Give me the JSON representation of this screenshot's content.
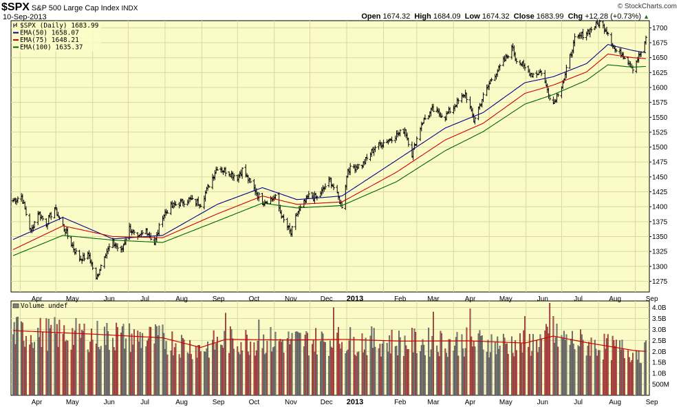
{
  "header": {
    "symbol": "$SPX",
    "description": "S&P 500 Large Cap Index",
    "exchange": "INDX",
    "date": "10-Sep-2013",
    "brand": "© StockCharts.com",
    "open_label": "Open",
    "open": "1674.32",
    "high_label": "High",
    "high": "1684.09",
    "low_label": "Low",
    "low": "1674.32",
    "close_label": "Close",
    "close": "1683.99",
    "chg_label": "Chg",
    "chg": "+12.28 (+0.73%)"
  },
  "legend": {
    "price": "$SPX (Daily) 1683.99",
    "ema50": "EMA(50) 1658.07",
    "ema75": "EMA(75) 1648.21",
    "ema100": "EMA(100) 1635.37",
    "volume": "Volume undef"
  },
  "colors": {
    "panel_bg": "#fbfbc8",
    "ema50": "#00008b",
    "ema75": "#cc0000",
    "ema100": "#006400",
    "vol_up": "#808080",
    "vol_down": "#d04848",
    "vol_avg": "#cc0000"
  },
  "chart_data": [
    {
      "type": "line",
      "panel": "price",
      "y_ticks": [
        1275,
        1300,
        1325,
        1350,
        1375,
        1400,
        1425,
        1450,
        1475,
        1500,
        1525,
        1550,
        1575,
        1600,
        1625,
        1650,
        1675,
        1700
      ],
      "ylim": [
        1257,
        1712
      ],
      "x_months": [
        "Apr",
        "May",
        "Jun",
        "Jul",
        "Aug",
        "Sep",
        "Oct",
        "Nov",
        "Dec",
        "2013",
        "Feb",
        "Mar",
        "Apr",
        "May",
        "Jun",
        "Jul",
        "Aug",
        "Sep"
      ],
      "close_anchors": [
        [
          "2012-03-26",
          1410
        ],
        [
          "2012-04-02",
          1418
        ],
        [
          "2012-04-10",
          1358
        ],
        [
          "2012-04-16",
          1390
        ],
        [
          "2012-04-23",
          1372
        ],
        [
          "2012-04-30",
          1398
        ],
        [
          "2012-05-07",
          1368
        ],
        [
          "2012-05-14",
          1338
        ],
        [
          "2012-05-21",
          1312
        ],
        [
          "2012-05-29",
          1318
        ],
        [
          "2012-06-04",
          1278
        ],
        [
          "2012-06-11",
          1320
        ],
        [
          "2012-06-18",
          1340
        ],
        [
          "2012-06-25",
          1325
        ],
        [
          "2012-07-02",
          1365
        ],
        [
          "2012-07-09",
          1345
        ],
        [
          "2012-07-16",
          1362
        ],
        [
          "2012-07-23",
          1338
        ],
        [
          "2012-07-30",
          1385
        ],
        [
          "2012-08-06",
          1400
        ],
        [
          "2012-08-13",
          1406
        ],
        [
          "2012-08-21",
          1412
        ],
        [
          "2012-08-31",
          1405
        ],
        [
          "2012-09-07",
          1437
        ],
        [
          "2012-09-14",
          1466
        ],
        [
          "2012-09-21",
          1460
        ],
        [
          "2012-10-01",
          1450
        ],
        [
          "2012-10-05",
          1462
        ],
        [
          "2012-10-15",
          1430
        ],
        [
          "2012-10-22",
          1408
        ],
        [
          "2012-11-02",
          1415
        ],
        [
          "2012-11-08",
          1380
        ],
        [
          "2012-11-15",
          1355
        ],
        [
          "2012-11-20",
          1388
        ],
        [
          "2012-11-30",
          1418
        ],
        [
          "2012-12-07",
          1415
        ],
        [
          "2012-12-18",
          1445
        ],
        [
          "2012-12-28",
          1402
        ],
        [
          "2013-01-02",
          1462
        ],
        [
          "2013-01-15",
          1472
        ],
        [
          "2013-01-25",
          1500
        ],
        [
          "2013-02-05",
          1512
        ],
        [
          "2013-02-12",
          1520
        ],
        [
          "2013-02-19",
          1530
        ],
        [
          "2013-02-25",
          1488
        ],
        [
          "2013-03-05",
          1540
        ],
        [
          "2013-03-14",
          1562
        ],
        [
          "2013-03-25",
          1552
        ],
        [
          "2013-04-02",
          1570
        ],
        [
          "2013-04-11",
          1590
        ],
        [
          "2013-04-18",
          1545
        ],
        [
          "2013-04-26",
          1585
        ],
        [
          "2013-05-03",
          1614
        ],
        [
          "2013-05-10",
          1634
        ],
        [
          "2013-05-21",
          1668
        ],
        [
          "2013-05-23",
          1650
        ],
        [
          "2013-05-31",
          1632
        ],
        [
          "2013-06-06",
          1622
        ],
        [
          "2013-06-14",
          1626
        ],
        [
          "2013-06-20",
          1590
        ],
        [
          "2013-06-24",
          1573
        ],
        [
          "2013-07-03",
          1614
        ],
        [
          "2013-07-12",
          1680
        ],
        [
          "2013-07-22",
          1692
        ],
        [
          "2013-08-02",
          1709
        ],
        [
          "2013-08-09",
          1692
        ],
        [
          "2013-08-15",
          1662
        ],
        [
          "2013-08-22",
          1655
        ],
        [
          "2013-08-30",
          1633
        ],
        [
          "2013-09-05",
          1655
        ],
        [
          "2013-09-09",
          1671
        ],
        [
          "2013-09-10",
          1683.99
        ]
      ],
      "ema_anchors": {
        "ema50": [
          [
            "2012-03-26",
            1345
          ],
          [
            "2012-05-07",
            1382
          ],
          [
            "2012-06-18",
            1346
          ],
          [
            "2012-07-30",
            1352
          ],
          [
            "2012-09-14",
            1404
          ],
          [
            "2012-10-22",
            1432
          ],
          [
            "2012-11-20",
            1412
          ],
          [
            "2012-12-28",
            1418
          ],
          [
            "2013-02-12",
            1478
          ],
          [
            "2013-03-25",
            1532
          ],
          [
            "2013-04-26",
            1558
          ],
          [
            "2013-05-31",
            1608
          ],
          [
            "2013-06-24",
            1618
          ],
          [
            "2013-07-22",
            1640
          ],
          [
            "2013-08-09",
            1672
          ],
          [
            "2013-08-30",
            1662
          ],
          [
            "2013-09-10",
            1658.07
          ]
        ],
        "ema75": [
          [
            "2012-03-26",
            1328
          ],
          [
            "2012-05-07",
            1368
          ],
          [
            "2012-06-18",
            1350
          ],
          [
            "2012-07-30",
            1348
          ],
          [
            "2012-09-14",
            1388
          ],
          [
            "2012-10-22",
            1418
          ],
          [
            "2012-11-20",
            1404
          ],
          [
            "2012-12-28",
            1408
          ],
          [
            "2013-02-12",
            1458
          ],
          [
            "2013-03-25",
            1512
          ],
          [
            "2013-04-26",
            1540
          ],
          [
            "2013-05-31",
            1590
          ],
          [
            "2013-06-24",
            1604
          ],
          [
            "2013-07-22",
            1626
          ],
          [
            "2013-08-09",
            1656
          ],
          [
            "2013-08-30",
            1650
          ],
          [
            "2013-09-10",
            1648.21
          ]
        ],
        "ema100": [
          [
            "2012-03-26",
            1318
          ],
          [
            "2012-05-07",
            1352
          ],
          [
            "2012-06-18",
            1344
          ],
          [
            "2012-07-30",
            1340
          ],
          [
            "2012-09-14",
            1376
          ],
          [
            "2012-10-22",
            1406
          ],
          [
            "2012-11-20",
            1398
          ],
          [
            "2012-12-28",
            1402
          ],
          [
            "2013-02-12",
            1442
          ],
          [
            "2013-03-25",
            1494
          ],
          [
            "2013-04-26",
            1526
          ],
          [
            "2013-05-31",
            1572
          ],
          [
            "2013-06-24",
            1588
          ],
          [
            "2013-07-22",
            1612
          ],
          [
            "2013-08-09",
            1638
          ],
          [
            "2013-08-30",
            1634
          ],
          [
            "2013-09-10",
            1635.37
          ]
        ]
      }
    },
    {
      "type": "bar",
      "panel": "volume",
      "y_ticks": [
        {
          "v": 500000000,
          "label": "500M"
        },
        {
          "v": 1000000000,
          "label": "1.0B"
        },
        {
          "v": 1500000000,
          "label": "1.5B"
        },
        {
          "v": 2000000000,
          "label": "2.0B"
        },
        {
          "v": 2500000000,
          "label": "2.5B"
        },
        {
          "v": 3000000000,
          "label": "3.0B"
        },
        {
          "v": 3500000000,
          "label": "3.5B"
        },
        {
          "v": 4000000000,
          "label": "4.0B"
        }
      ],
      "ylim": [
        0,
        4300000000
      ],
      "avg_anchors": [
        [
          "2012-03-26",
          2950000000
        ],
        [
          "2012-06-04",
          2780000000
        ],
        [
          "2012-07-30",
          2620000000
        ],
        [
          "2012-08-31",
          2180000000
        ],
        [
          "2012-09-21",
          2550000000
        ],
        [
          "2012-11-15",
          2520000000
        ],
        [
          "2012-12-31",
          2550000000
        ],
        [
          "2013-02-15",
          2470000000
        ],
        [
          "2013-04-15",
          2480000000
        ],
        [
          "2013-05-31",
          2380000000
        ],
        [
          "2013-06-24",
          2700000000
        ],
        [
          "2013-07-22",
          2400000000
        ],
        [
          "2013-08-30",
          2050000000
        ],
        [
          "2013-09-10",
          2000000000
        ]
      ],
      "spikes": [
        [
          "2012-06-21",
          3300000000
        ],
        [
          "2012-09-21",
          3750000000
        ],
        [
          "2012-10-19",
          3450000000
        ],
        [
          "2012-12-21",
          4000000000
        ],
        [
          "2013-03-15",
          3800000000
        ],
        [
          "2013-04-15",
          3950000000
        ],
        [
          "2013-06-21",
          4200000000
        ],
        [
          "2013-06-24",
          3600000000
        ],
        [
          "2013-05-31",
          3600000000
        ]
      ]
    }
  ]
}
